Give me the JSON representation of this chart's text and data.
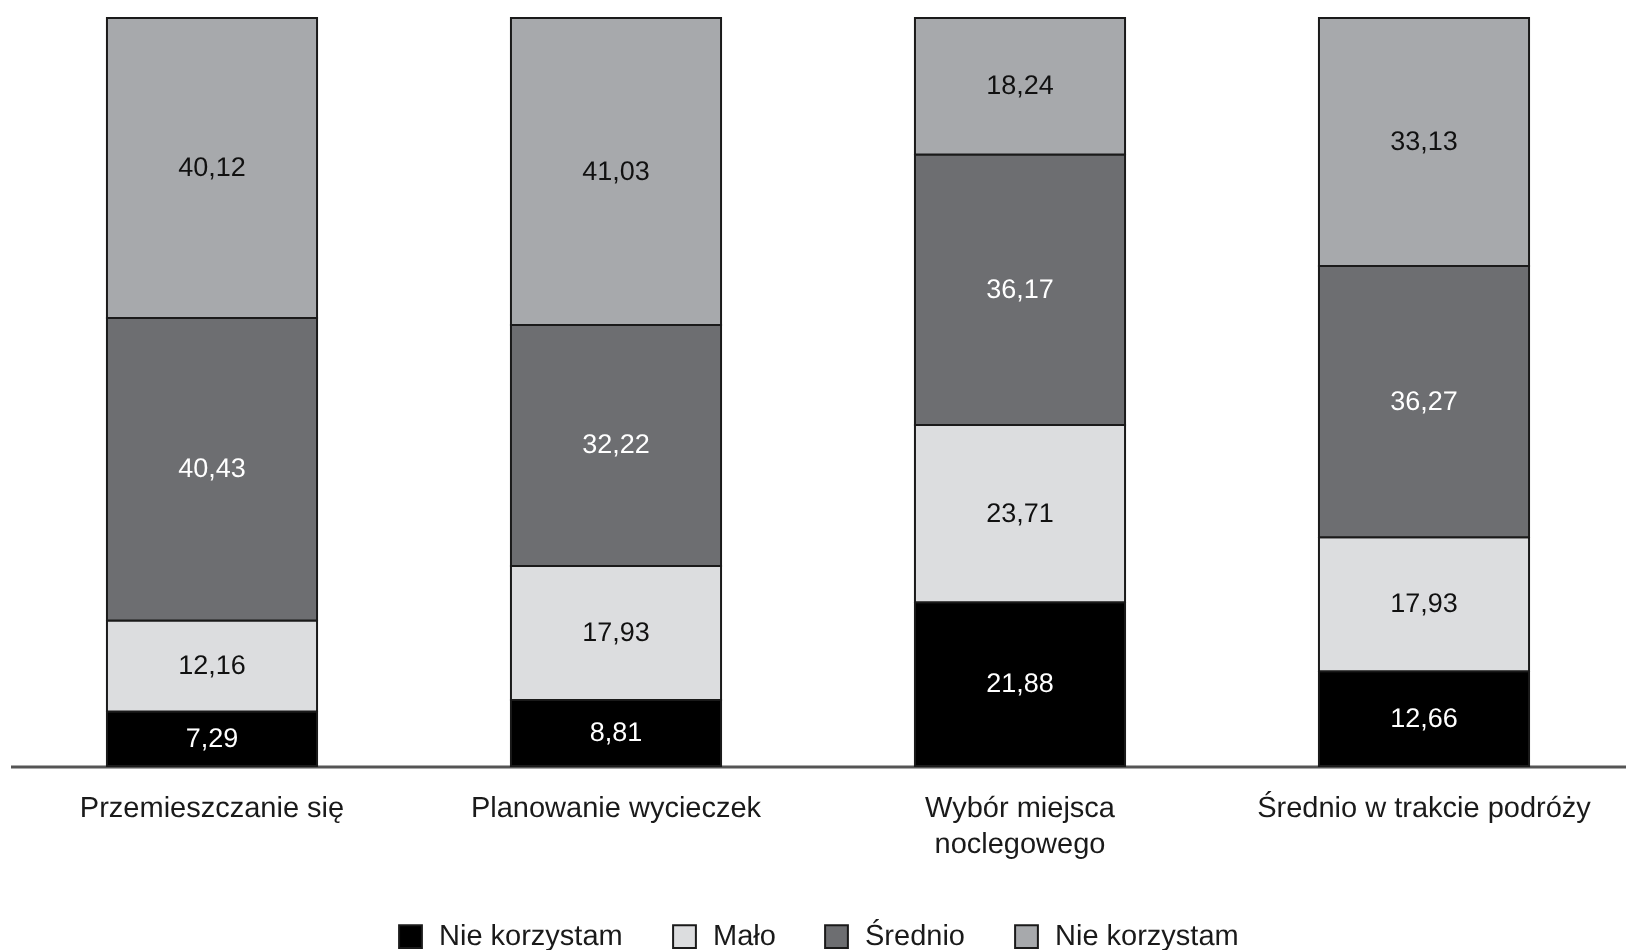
{
  "chart_data": {
    "type": "bar",
    "categories": [
      "Przemieszczanie się",
      "Planowanie wycieczek",
      "Wybór miejsca\nnoclegowego",
      "Średnio w trakcie podróży"
    ],
    "series": [
      {
        "name": "Nie korzystam",
        "color": "#000000",
        "values": [
          7.29,
          8.81,
          21.88,
          12.66
        ],
        "value_labels": [
          "7,29",
          "8,81",
          "21,88",
          "12,66"
        ]
      },
      {
        "name": "Mało",
        "color": "#dcdddf",
        "values": [
          12.16,
          17.93,
          23.71,
          17.93
        ],
        "value_labels": [
          "12,16",
          "17,93",
          "23,71",
          "17,93"
        ]
      },
      {
        "name": "Średnio",
        "color": "#6d6e71",
        "values": [
          40.43,
          32.22,
          36.17,
          36.27
        ],
        "value_labels": [
          "40,43",
          "32,22",
          "36,17",
          "36,27"
        ]
      },
      {
        "name": "Nie korzystam",
        "color": "#a7a9ac",
        "values": [
          40.12,
          41.03,
          18.24,
          33.13
        ],
        "value_labels": [
          "40,12",
          "41,03",
          "18,24",
          "33,13"
        ]
      }
    ],
    "stacked": true,
    "legend": "bottom"
  }
}
